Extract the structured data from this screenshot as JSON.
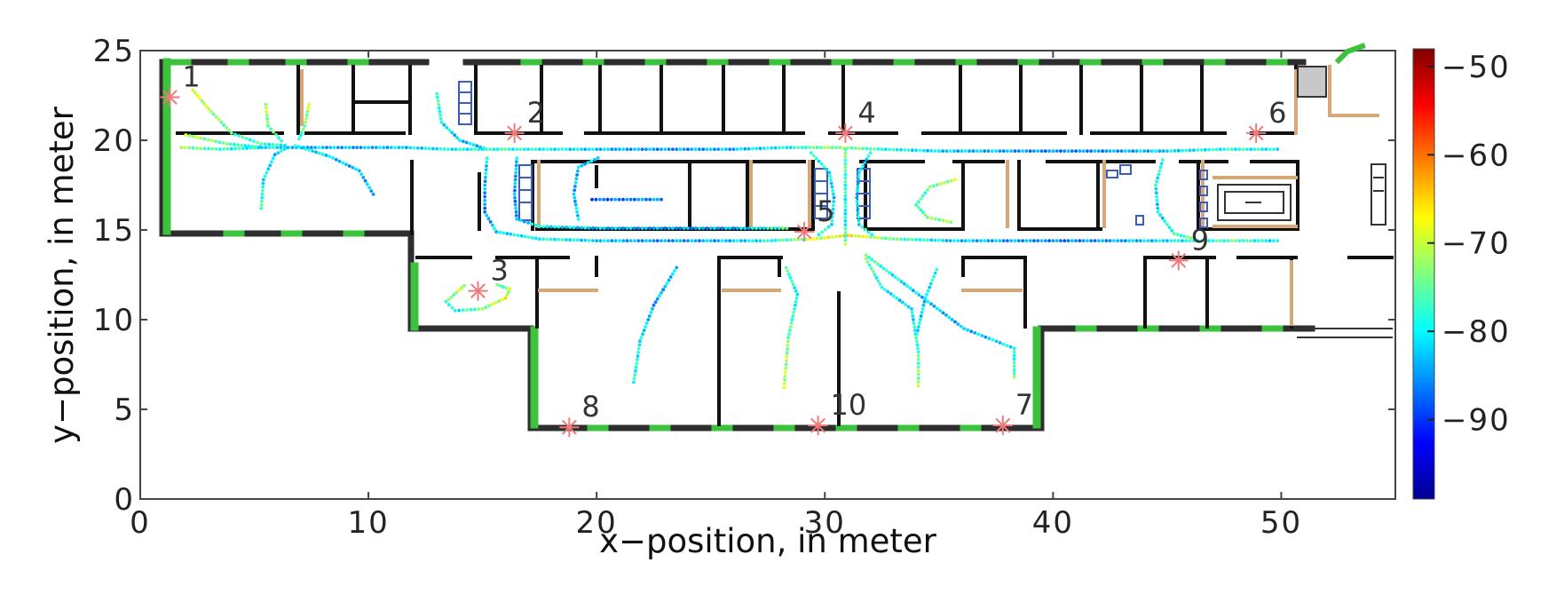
{
  "chart_data": {
    "type": "scatter",
    "xlabel": "x−position, in meter",
    "ylabel": "y−position, in meter",
    "xlim": [
      0,
      55
    ],
    "ylim": [
      0,
      25
    ],
    "xticks": [
      "0",
      "10",
      "20",
      "30",
      "40",
      "50"
    ],
    "yticks": [
      "0",
      "5",
      "10",
      "15",
      "20",
      "25"
    ],
    "grid": false,
    "colorbar": {
      "range": [
        -99,
        -48
      ],
      "ticks": [
        "−50",
        "−60",
        "−70",
        "−80",
        "−90"
      ],
      "colormap": "jet"
    },
    "access_points": [
      {
        "label": "1",
        "x": 1.3,
        "y": 22.4
      },
      {
        "label": "2",
        "x": 16.4,
        "y": 20.4
      },
      {
        "label": "3",
        "x": 14.8,
        "y": 11.6
      },
      {
        "label": "4",
        "x": 30.9,
        "y": 20.4
      },
      {
        "label": "5",
        "x": 29.1,
        "y": 14.9
      },
      {
        "label": "6",
        "x": 48.9,
        "y": 20.4
      },
      {
        "label": "7",
        "x": 37.8,
        "y": 4.1
      },
      {
        "label": "8",
        "x": 18.8,
        "y": 4.0
      },
      {
        "label": "9",
        "x": 45.5,
        "y": 13.3
      },
      {
        "label": "10",
        "x": 29.7,
        "y": 4.1
      }
    ],
    "trajectories": [
      {
        "points": [
          [
            1.8,
            19.6
          ],
          [
            3.5,
            19.5
          ],
          [
            5.5,
            19.6
          ],
          [
            7.5,
            19.6
          ],
          [
            9.5,
            19.6
          ],
          [
            11.5,
            19.6
          ],
          [
            13.5,
            19.5
          ],
          [
            16,
            19.5
          ],
          [
            18.5,
            19.5
          ],
          [
            21,
            19.5
          ],
          [
            23.5,
            19.5
          ],
          [
            26,
            19.5
          ],
          [
            28.5,
            19.6
          ],
          [
            30.5,
            19.6
          ],
          [
            32.5,
            19.5
          ],
          [
            35,
            19.4
          ],
          [
            37.5,
            19.4
          ],
          [
            40,
            19.4
          ],
          [
            42.5,
            19.4
          ],
          [
            45,
            19.4
          ],
          [
            47.5,
            19.5
          ],
          [
            50,
            19.5
          ]
        ],
        "values": [
          -72,
          -78,
          -80,
          -83,
          -84,
          -82,
          -80,
          -78,
          -80,
          -84,
          -85,
          -83,
          -79,
          -72,
          -78,
          -82,
          -84,
          -86,
          -85,
          -82,
          -78,
          -80
        ]
      },
      {
        "points": [
          [
            15.2,
            19.0
          ],
          [
            15.1,
            17.5
          ],
          [
            15.1,
            16.0
          ],
          [
            15.6,
            14.9
          ],
          [
            17.5,
            14.5
          ],
          [
            20,
            14.4
          ],
          [
            22.5,
            14.4
          ],
          [
            25,
            14.4
          ],
          [
            27.5,
            14.4
          ],
          [
            29.5,
            14.5
          ],
          [
            31,
            14.7
          ],
          [
            33,
            14.5
          ],
          [
            35.5,
            14.4
          ],
          [
            38,
            14.4
          ],
          [
            40.5,
            14.4
          ],
          [
            43,
            14.4
          ],
          [
            45.5,
            14.4
          ],
          [
            48,
            14.4
          ],
          [
            50,
            14.4
          ]
        ],
        "values": [
          -80,
          -84,
          -86,
          -82,
          -78,
          -82,
          -85,
          -84,
          -80,
          -70,
          -66,
          -75,
          -82,
          -84,
          -86,
          -84,
          -80,
          -76,
          -82
        ]
      },
      {
        "points": [
          [
            16.5,
            19.0
          ],
          [
            16.4,
            17.0
          ],
          [
            16.5,
            15.6
          ],
          [
            17.5,
            15.2
          ],
          [
            20,
            15.1
          ],
          [
            23,
            15.1
          ],
          [
            26,
            15.1
          ],
          [
            28.5,
            15.1
          ]
        ],
        "values": [
          -82,
          -85,
          -84,
          -80,
          -82,
          -84,
          -83,
          -75
        ]
      },
      {
        "points": [
          [
            19.2,
            15.6
          ],
          [
            19.0,
            17.0
          ],
          [
            19.2,
            18.5
          ],
          [
            20.2,
            19.1
          ]
        ],
        "values": [
          -80,
          -84,
          -83,
          -80
        ]
      },
      {
        "points": [
          [
            19.8,
            16.7
          ],
          [
            21.5,
            16.7
          ],
          [
            23,
            16.7
          ]
        ],
        "values": [
          -88,
          -86,
          -85
        ]
      },
      {
        "points": [
          [
            30.9,
            19.5
          ],
          [
            30.9,
            17.5
          ],
          [
            30.9,
            15.5
          ],
          [
            30.9,
            14.0
          ]
        ],
        "values": [
          -74,
          -78,
          -80,
          -72
        ]
      },
      {
        "points": [
          [
            29.4,
            19.3
          ],
          [
            30.2,
            18.2
          ],
          [
            30.4,
            16.8
          ],
          [
            30.3,
            15.3
          ],
          [
            29.6,
            14.6
          ]
        ],
        "values": [
          -78,
          -80,
          -82,
          -80,
          -76
        ]
      },
      {
        "points": [
          [
            32.0,
            19.3
          ],
          [
            31.5,
            18.2
          ],
          [
            31.4,
            16.8
          ],
          [
            31.5,
            15.3
          ],
          [
            32.2,
            14.6
          ]
        ],
        "values": [
          -80,
          -82,
          -83,
          -80,
          -76
        ]
      },
      {
        "points": [
          [
            35.7,
            17.8
          ],
          [
            34.6,
            17.4
          ],
          [
            34.0,
            16.4
          ],
          [
            34.5,
            15.7
          ],
          [
            35.7,
            15.4
          ]
        ],
        "values": [
          -70,
          -75,
          -78,
          -74,
          -72
        ]
      },
      {
        "points": [
          [
            44.8,
            18.9
          ],
          [
            44.5,
            17.5
          ],
          [
            44.6,
            16.0
          ],
          [
            45.3,
            14.8
          ],
          [
            46.2,
            14.5
          ]
        ],
        "values": [
          -78,
          -80,
          -82,
          -78,
          -74
        ]
      },
      {
        "points": [
          [
            2.3,
            22.8
          ],
          [
            3.1,
            21.6
          ],
          [
            4.0,
            20.4
          ],
          [
            5.3,
            19.8
          ],
          [
            6.5,
            19.7
          ]
        ],
        "values": [
          -68,
          -72,
          -76,
          -78,
          -80
        ]
      },
      {
        "points": [
          [
            5.5,
            22.0
          ],
          [
            5.6,
            20.8
          ],
          [
            6.3,
            19.8
          ]
        ],
        "values": [
          -70,
          -74,
          -78
        ]
      },
      {
        "points": [
          [
            5.3,
            16.2
          ],
          [
            5.4,
            17.8
          ],
          [
            5.9,
            19.2
          ],
          [
            6.6,
            19.7
          ]
        ],
        "values": [
          -76,
          -80,
          -82,
          -80
        ]
      },
      {
        "points": [
          [
            7.4,
            22.0
          ],
          [
            7.2,
            20.8
          ],
          [
            6.9,
            19.9
          ]
        ],
        "values": [
          -70,
          -75,
          -79
        ]
      },
      {
        "points": [
          [
            6.8,
            19.7
          ],
          [
            8.3,
            19.1
          ],
          [
            9.6,
            18.3
          ],
          [
            10.3,
            16.8
          ]
        ],
        "values": [
          -80,
          -82,
          -84,
          -83
        ]
      },
      {
        "points": [
          [
            2.0,
            20.3
          ],
          [
            3.8,
            19.8
          ],
          [
            5.4,
            19.6
          ]
        ],
        "values": [
          -70,
          -76,
          -80
        ]
      },
      {
        "points": [
          [
            13.0,
            22.6
          ],
          [
            13.2,
            21.0
          ],
          [
            14.0,
            20.0
          ],
          [
            15.2,
            19.5
          ]
        ],
        "values": [
          -76,
          -80,
          -83,
          -82
        ]
      },
      {
        "points": [
          [
            14.2,
            11.9
          ],
          [
            13.4,
            11.0
          ],
          [
            13.8,
            10.5
          ],
          [
            15.0,
            10.6
          ],
          [
            16.0,
            11.2
          ],
          [
            16.2,
            11.7
          ],
          [
            15.5,
            12.0
          ]
        ],
        "values": [
          -70,
          -76,
          -80,
          -74,
          -68,
          -72,
          -78
        ]
      },
      {
        "points": [
          [
            23.5,
            12.9
          ],
          [
            22.5,
            10.8
          ],
          [
            21.9,
            8.8
          ],
          [
            21.6,
            6.3
          ]
        ],
        "values": [
          -82,
          -84,
          -80,
          -78
        ]
      },
      {
        "points": [
          [
            28.3,
            12.9
          ],
          [
            28.8,
            11.4
          ],
          [
            28.4,
            9.0
          ],
          [
            28.2,
            6.0
          ]
        ],
        "values": [
          -76,
          -80,
          -74,
          -70
        ]
      },
      {
        "points": [
          [
            31.8,
            13.4
          ],
          [
            32.5,
            11.8
          ],
          [
            33.8,
            10.6
          ],
          [
            34.1,
            8.2
          ],
          [
            34.1,
            6.1
          ]
        ],
        "values": [
          -74,
          -80,
          -82,
          -76,
          -72
        ]
      },
      {
        "points": [
          [
            31.8,
            13.6
          ],
          [
            34.0,
            11.5
          ],
          [
            36.1,
            9.5
          ],
          [
            38.3,
            8.4
          ],
          [
            38.3,
            6.6
          ]
        ],
        "values": [
          -76,
          -82,
          -84,
          -80,
          -74
        ]
      },
      {
        "points": [
          [
            34.9,
            12.8
          ],
          [
            34.4,
            11.2
          ],
          [
            34.0,
            9.0
          ]
        ],
        "values": [
          -78,
          -82,
          -80
        ]
      }
    ]
  }
}
